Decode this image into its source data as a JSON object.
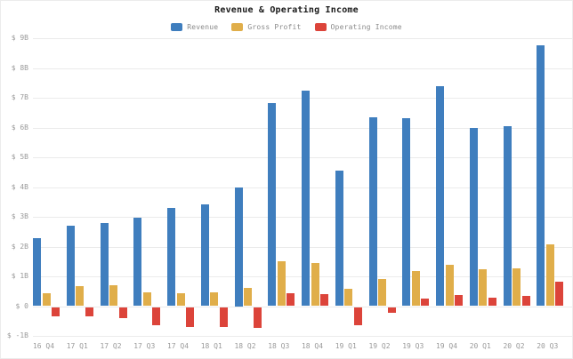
{
  "title": "Revenue & Operating Income",
  "legend": {
    "items": [
      {
        "label": "Revenue",
        "color": "#3F7EBE"
      },
      {
        "label": "Gross Profit",
        "color": "#E0AE4A"
      },
      {
        "label": "Operating Income",
        "color": "#DC443A"
      }
    ]
  },
  "chart_data": {
    "type": "bar",
    "title": "Revenue & Operating Income",
    "categories": [
      "16 Q4",
      "17 Q1",
      "17 Q2",
      "17 Q3",
      "17 Q4",
      "18 Q1",
      "18 Q2",
      "18 Q3",
      "18 Q4",
      "19 Q1",
      "19 Q2",
      "19 Q3",
      "19 Q4",
      "20 Q1",
      "20 Q2",
      "20 Q3"
    ],
    "series": [
      {
        "name": "Revenue",
        "color": "#3F7EBE",
        "values": [
          2.28,
          2.7,
          2.79,
          2.98,
          3.29,
          3.41,
          4.0,
          6.82,
          7.23,
          4.54,
          6.35,
          6.3,
          7.38,
          5.99,
          6.04,
          8.77
        ]
      },
      {
        "name": "Gross Profit",
        "color": "#E0AE4A",
        "values": [
          0.43,
          0.67,
          0.69,
          0.45,
          0.44,
          0.46,
          0.62,
          1.52,
          1.44,
          0.57,
          0.92,
          1.19,
          1.39,
          1.23,
          1.27,
          2.06
        ]
      },
      {
        "name": "Operating Income",
        "color": "#DC443A",
        "values": [
          -0.3,
          -0.3,
          -0.35,
          -0.6,
          -0.65,
          -0.65,
          -0.7,
          0.42,
          0.41,
          -0.6,
          -0.17,
          0.26,
          0.36,
          0.28,
          0.33,
          0.81
        ]
      }
    ],
    "units": "$B",
    "ylim": [
      -1,
      9
    ],
    "y_tick_step": 1,
    "y_ticks": [
      {
        "v": 9,
        "label": "$ 9B"
      },
      {
        "v": 8,
        "label": "$ 8B"
      },
      {
        "v": 7,
        "label": "$ 7B"
      },
      {
        "v": 6,
        "label": "$ 6B"
      },
      {
        "v": 5,
        "label": "$ 5B"
      },
      {
        "v": 4,
        "label": "$ 4B"
      },
      {
        "v": 3,
        "label": "$ 3B"
      },
      {
        "v": 2,
        "label": "$ 2B"
      },
      {
        "v": 1,
        "label": "$ 1B"
      },
      {
        "v": 0,
        "label": "$ 0"
      },
      {
        "v": -1,
        "label": "$ -1B"
      }
    ],
    "grid": true,
    "legend_position": "top"
  }
}
